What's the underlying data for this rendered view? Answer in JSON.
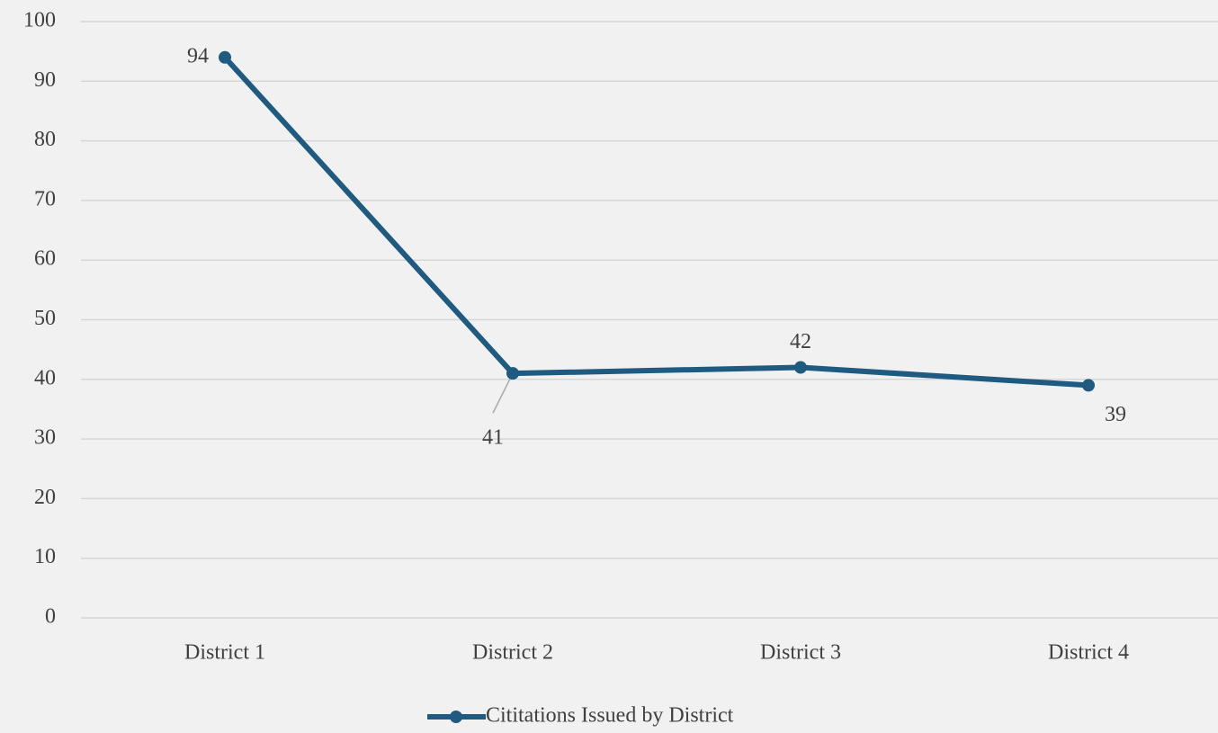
{
  "chart_data": {
    "type": "line",
    "categories": [
      "District 1",
      "District 2",
      "District 3",
      "District 4"
    ],
    "series": [
      {
        "name": "Cititations Issued by District",
        "color": "#1f5a80",
        "values": [
          94,
          41,
          42,
          39
        ]
      }
    ],
    "ylim": [
      0,
      100
    ],
    "yticks": [
      0,
      10,
      20,
      30,
      40,
      50,
      60,
      70,
      80,
      90,
      100
    ],
    "grid": true,
    "legend": "bottom"
  }
}
